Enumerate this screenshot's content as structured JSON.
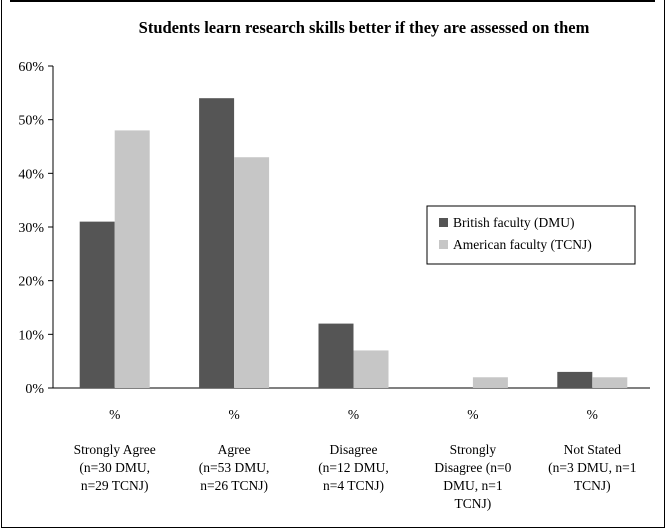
{
  "chart_data": {
    "type": "bar",
    "title": "Students learn research skills better if they are assessed on them",
    "xlabel": "",
    "ylabel": "",
    "ylim": [
      0,
      60
    ],
    "yticks": [
      "0%",
      "10%",
      "20%",
      "30%",
      "40%",
      "50%",
      "60%"
    ],
    "unit_row_label": "%",
    "categories": [
      [
        "Strongly Agree",
        "(n=30 DMU,",
        "n=29 TCNJ)"
      ],
      [
        "Agree",
        "(n=53 DMU,",
        "n=26 TCNJ)"
      ],
      [
        "Disagree",
        "(n=12 DMU,",
        "n=4 TCNJ)"
      ],
      [
        "Strongly",
        "Disagree (n=0",
        "DMU,  n=1",
        "TCNJ)"
      ],
      [
        "Not Stated",
        "(n=3 DMU,  n=1",
        "TCNJ)"
      ]
    ],
    "series": [
      {
        "name": "British faculty (DMU)",
        "color": "#555555",
        "values": [
          31,
          54,
          12,
          0,
          3
        ]
      },
      {
        "name": "American faculty (TCNJ)",
        "color": "#c6c6c6",
        "values": [
          48,
          43,
          7,
          2,
          2
        ]
      }
    ],
    "legend_position": "right",
    "grid": false
  }
}
